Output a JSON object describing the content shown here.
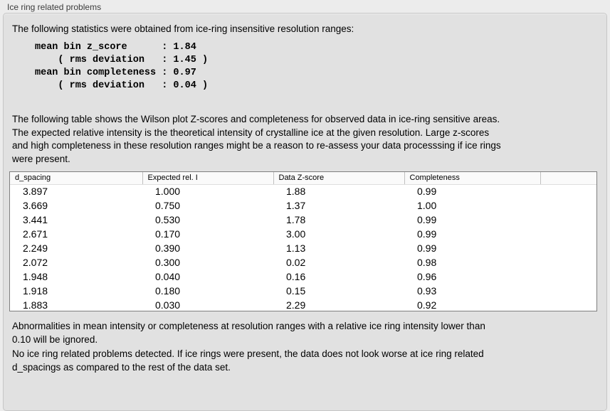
{
  "panel": {
    "title": "Ice ring related problems"
  },
  "intro": "The following statistics were obtained from ice-ring insensitive resolution ranges:",
  "stats_block": "mean bin z_score      : 1.84\n    ( rms deviation   : 1.45 )\nmean bin completeness : 0.97\n    ( rms deviation   : 0.04 )",
  "table_description": "The following table shows the Wilson plot Z-scores and completeness for observed data in ice-ring sensitive areas.\nThe expected relative intensity is the theoretical intensity of crystalline ice at the given resolution. Large z-scores\nand high completeness in these resolution ranges might be a reason to re-assess your data processsing if ice rings\nwere present.",
  "table": {
    "columns": [
      "d_spacing",
      "Expected rel. I",
      "Data Z-score",
      "Completeness"
    ],
    "rows": [
      [
        "3.897",
        "1.000",
        "1.88",
        "0.99"
      ],
      [
        "3.669",
        "0.750",
        "1.37",
        "1.00"
      ],
      [
        "3.441",
        "0.530",
        "1.78",
        "0.99"
      ],
      [
        "2.671",
        "0.170",
        "3.00",
        "0.99"
      ],
      [
        "2.249",
        "0.390",
        "1.13",
        "0.99"
      ],
      [
        "2.072",
        "0.300",
        "0.02",
        "0.98"
      ],
      [
        "1.948",
        "0.040",
        "0.16",
        "0.96"
      ],
      [
        "1.918",
        "0.180",
        "0.15",
        "0.93"
      ],
      [
        "1.883",
        "0.030",
        "2.29",
        "0.92"
      ]
    ]
  },
  "ignore_note": "Abnormalities in mean intensity or completeness at resolution ranges with a relative ice ring intensity lower than\n0.10 will be ignored.",
  "conclusion": "No ice ring related problems detected. If ice rings were present, the data does not look worse at ice ring related\nd_spacings as compared to the rest of the data set."
}
